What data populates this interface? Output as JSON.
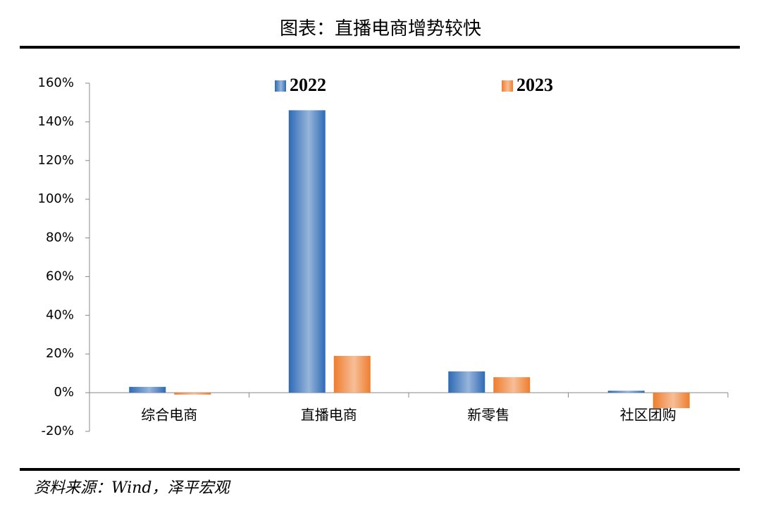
{
  "chart_data": {
    "type": "bar",
    "title": "图表：直播电商增势较快",
    "source": "资料来源：Wind，泽平宏观",
    "categories": [
      "综合电商",
      "直播电商",
      "新零售",
      "社区团购"
    ],
    "series": [
      {
        "name": "2022",
        "color": "#2e6ab5",
        "values": [
          3,
          146,
          11,
          1
        ]
      },
      {
        "name": "2023",
        "color": "#ee7d2e",
        "values": [
          -1,
          19,
          8,
          -8
        ]
      }
    ],
    "ylim": [
      -20,
      160
    ],
    "yticks": [
      {
        "value": -20,
        "label": "-20%"
      },
      {
        "value": 0,
        "label": "0%"
      },
      {
        "value": 20,
        "label": "20%"
      },
      {
        "value": 40,
        "label": "40%"
      },
      {
        "value": 60,
        "label": "60%"
      },
      {
        "value": 80,
        "label": "80%"
      },
      {
        "value": 100,
        "label": "100%"
      },
      {
        "value": 120,
        "label": "120%"
      },
      {
        "value": 140,
        "label": "140%"
      },
      {
        "value": 160,
        "label": "160%"
      }
    ],
    "grid": false,
    "legend": "top"
  }
}
